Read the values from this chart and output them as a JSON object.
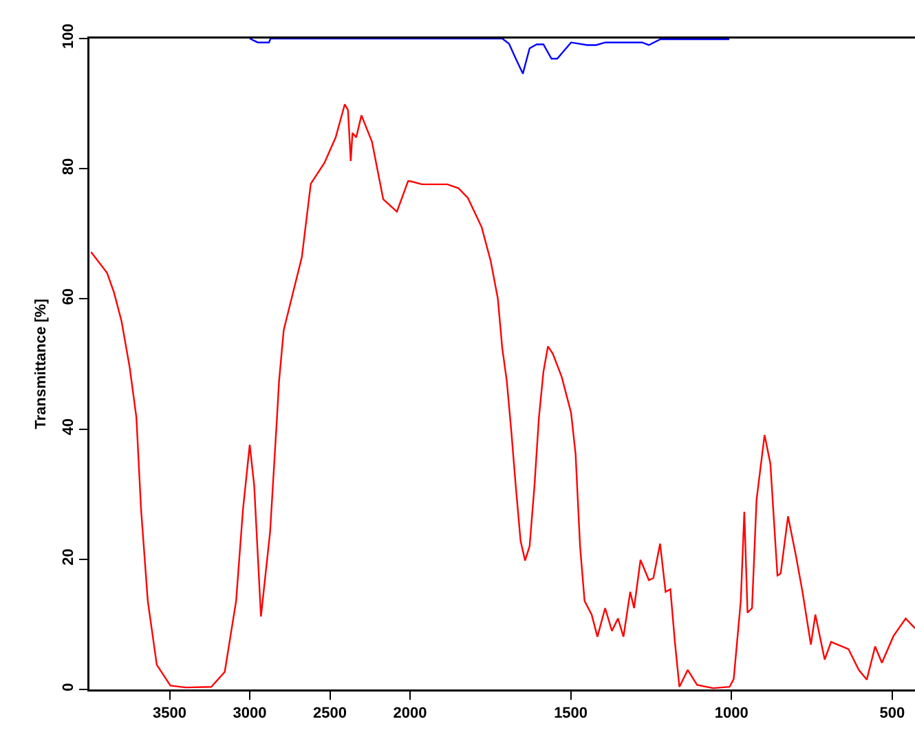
{
  "chart_data": [
    {
      "type": "line",
      "ylabel": "Transmittance [%]",
      "xlim": [
        4000,
        2000
      ],
      "xticks": [
        3500,
        3000,
        2500,
        2000
      ],
      "ylim": [
        0,
        100
      ],
      "yticks": [
        0,
        20,
        40,
        60,
        80,
        100
      ],
      "series": [
        {
          "color": "#ff0000",
          "x": [
            3990,
            3890,
            3847,
            3800,
            3749,
            3707,
            3678,
            3636,
            3580,
            3495,
            3400,
            3240,
            3156,
            3085,
            3042,
            3000,
            2972,
            2930,
            2873,
            2830,
            2817,
            2788,
            2675,
            2619,
            2534,
            2464,
            2407,
            2387,
            2370,
            2359,
            2336,
            2303,
            2237,
            2167,
            2082,
            2012,
            2000
          ],
          "values": [
            67.2,
            64,
            61,
            56.6,
            49.5,
            41.8,
            27.7,
            13.6,
            3.8,
            0.6,
            0.3,
            0.4,
            2.7,
            13.6,
            27.7,
            37.6,
            31.3,
            11.2,
            24.2,
            41.8,
            47.4,
            55.2,
            66.4,
            77.7,
            80.9,
            84.8,
            89.9,
            89,
            81.2,
            85.5,
            84.8,
            88.2,
            84.1,
            75.3,
            73.4,
            78.1,
            78.1
          ]
        },
        {
          "color": "#0000ff",
          "x": [
            3000,
            2950,
            2880,
            2870,
            2000
          ],
          "values": [
            100,
            99.4,
            99.4,
            100,
            100
          ]
        }
      ]
    },
    {
      "type": "line",
      "xlim": [
        2000,
        429
      ],
      "xticks": [
        1500,
        1000,
        500
      ],
      "ylim": [
        0,
        100
      ],
      "yticks": [
        0,
        20,
        40,
        60,
        80,
        100
      ],
      "tick_labels": "x",
      "series": [
        {
          "color": "#ff0000",
          "x": [
            2000,
            1963,
            1884,
            1849,
            1820,
            1777,
            1749,
            1727,
            1713,
            1699,
            1685,
            1671,
            1656,
            1642,
            1628,
            1613,
            1599,
            1585,
            1571,
            1556,
            1528,
            1499,
            1485,
            1471,
            1457,
            1435,
            1417,
            1393,
            1372,
            1353,
            1336,
            1315,
            1303,
            1283,
            1257,
            1243,
            1222,
            1205,
            1190,
            1176,
            1162,
            1136,
            1107,
            1057,
            1006,
            993,
            971,
            960,
            950,
            936,
            922,
            897,
            879,
            857,
            847,
            824,
            800,
            779,
            753,
            739,
            710,
            690,
            636,
            604,
            579,
            553,
            532,
            496,
            458,
            429
          ],
          "values": [
            78.1,
            77.6,
            77.6,
            77,
            75.5,
            71,
            65.8,
            60.1,
            52.4,
            47.4,
            39.7,
            31.2,
            22.8,
            19.8,
            22,
            31.2,
            41.8,
            48.8,
            52.7,
            51.6,
            48,
            42.5,
            36.2,
            22,
            13.6,
            11.5,
            8.1,
            12.5,
            9,
            10.9,
            8.1,
            15,
            12.5,
            19.9,
            16.8,
            17.1,
            22.4,
            15,
            15.4,
            7.3,
            0.4,
            3,
            0.7,
            0.2,
            0.4,
            1.6,
            13.6,
            27.3,
            11.8,
            12.5,
            29.1,
            39.1,
            34.7,
            17.5,
            17.8,
            26.6,
            20.7,
            15,
            6.9,
            11.5,
            4.6,
            7.3,
            6.2,
            3,
            1.5,
            6.6,
            4.1,
            8.2,
            10.9,
            9.4
          ]
        },
        {
          "color": "#0000ff",
          "x": [
            2000,
            1713,
            1692,
            1670,
            1649,
            1628,
            1606,
            1585,
            1560,
            1542,
            1499,
            1449,
            1421,
            1392,
            1278,
            1257,
            1221,
            1007
          ],
          "values": [
            100,
            100,
            99.2,
            96.8,
            94.6,
            98.5,
            99.1,
            99.1,
            96.9,
            96.9,
            99.4,
            99,
            99,
            99.4,
            99.4,
            99,
            99.9,
            99.9
          ]
        }
      ]
    }
  ]
}
